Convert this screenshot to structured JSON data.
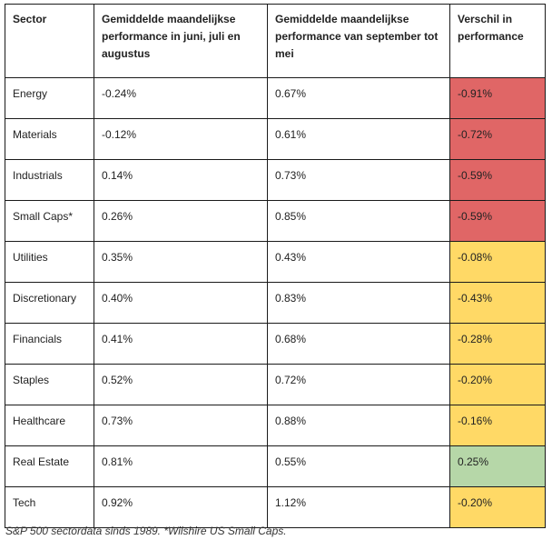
{
  "table": {
    "headers": [
      "Sector",
      "Gemiddelde maandelijkse performance in juni, juli en augustus",
      "Gemiddelde maandelijkse performance van september tot mei",
      "Verschil in performance"
    ],
    "rows": [
      {
        "sector": "Energy",
        "summer": "-0.24%",
        "rest": "0.67%",
        "diff": "-0.91%",
        "diff_color": "#e06666"
      },
      {
        "sector": "Materials",
        "summer": "-0.12%",
        "rest": "0.61%",
        "diff": "-0.72%",
        "diff_color": "#e06666"
      },
      {
        "sector": "Industrials",
        "summer": "0.14%",
        "rest": "0.73%",
        "diff": "-0.59%",
        "diff_color": "#e06666"
      },
      {
        "sector": "Small Caps*",
        "summer": "0.26%",
        "rest": "0.85%",
        "diff": "-0.59%",
        "diff_color": "#e06666"
      },
      {
        "sector": "Utilities",
        "summer": "0.35%",
        "rest": "0.43%",
        "diff": "-0.08%",
        "diff_color": "#ffd966"
      },
      {
        "sector": "Discretionary",
        "summer": "0.40%",
        "rest": "0.83%",
        "diff": "-0.43%",
        "diff_color": "#ffd966"
      },
      {
        "sector": "Financials",
        "summer": "0.41%",
        "rest": "0.68%",
        "diff": "-0.28%",
        "diff_color": "#ffd966"
      },
      {
        "sector": "Staples",
        "summer": "0.52%",
        "rest": "0.72%",
        "diff": "-0.20%",
        "diff_color": "#ffd966"
      },
      {
        "sector": "Healthcare",
        "summer": "0.73%",
        "rest": "0.88%",
        "diff": "-0.16%",
        "diff_color": "#ffd966"
      },
      {
        "sector": "Real Estate",
        "summer": "0.81%",
        "rest": "0.55%",
        "diff": "0.25%",
        "diff_color": "#b6d7a8"
      },
      {
        "sector": "Tech",
        "summer": "0.92%",
        "rest": "1.12%",
        "diff": "-0.20%",
        "diff_color": "#ffd966"
      }
    ]
  },
  "footnote": "S&P 500 sectordata sinds 1989. *Wilshire US Small Caps."
}
